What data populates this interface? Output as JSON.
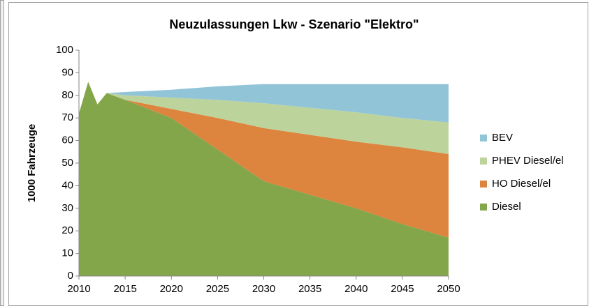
{
  "chart_data": {
    "type": "stacked_area",
    "title": "Neuzulassungen Lkw - Szenario \"Elektro\"",
    "y_label": "1000 Fahrzeuge",
    "x": [
      2010,
      2011,
      2012,
      2013,
      2015,
      2020,
      2025,
      2030,
      2035,
      2040,
      2045,
      2050
    ],
    "series": [
      {
        "name": "Diesel",
        "color": "#84a64a",
        "values": [
          72,
          86,
          76,
          81,
          78,
          70,
          56,
          42,
          36,
          30,
          23,
          17
        ]
      },
      {
        "name": "HO Diesel/el",
        "color": "#dd843f",
        "values": [
          0,
          0,
          0,
          0,
          0,
          4,
          14,
          23.5,
          26.5,
          29.5,
          34,
          37
        ]
      },
      {
        "name": "PHEV Diesel/el",
        "color": "#bcd49b",
        "values": [
          0,
          0,
          0,
          0,
          2,
          5,
          8,
          11,
          12,
          13,
          13,
          14
        ]
      },
      {
        "name": "BEV",
        "color": "#92c4d8",
        "values": [
          0,
          0,
          0,
          0,
          1.5,
          3.5,
          6,
          8.5,
          10.5,
          12.5,
          15,
          17
        ]
      }
    ],
    "xlim": [
      2010,
      2050
    ],
    "xticks": [
      2010,
      2015,
      2020,
      2025,
      2030,
      2035,
      2040,
      2045,
      2050
    ],
    "ylim": [
      0,
      100
    ],
    "yticks": [
      0,
      10,
      20,
      30,
      40,
      50,
      60,
      70,
      80,
      90,
      100
    ],
    "grid": false,
    "legend": "right"
  }
}
